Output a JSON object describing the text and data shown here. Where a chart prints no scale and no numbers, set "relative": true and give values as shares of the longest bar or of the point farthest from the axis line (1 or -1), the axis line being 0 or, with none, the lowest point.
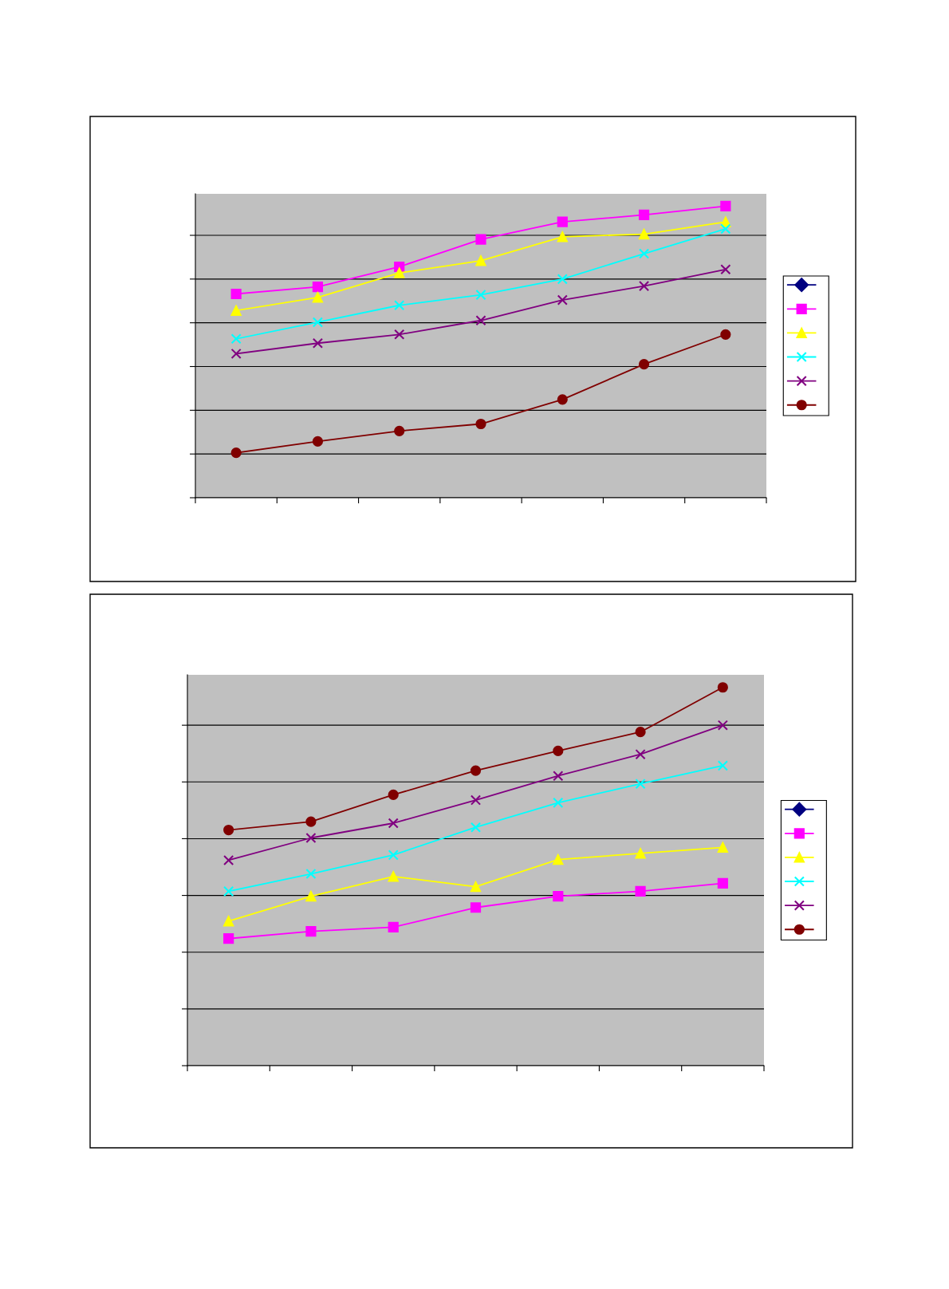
{
  "chart_data": [
    {
      "type": "line",
      "relative": true,
      "grid": "y",
      "categories": [
        null,
        null,
        null,
        null,
        null,
        null,
        null
      ],
      "series": [
        {
          "color": "#000080",
          "marker": "diamond",
          "values": [
            null,
            null,
            null,
            null,
            null,
            null,
            null
          ]
        },
        {
          "color": "#ff00ff",
          "marker": "square",
          "values": [
            0.699,
            0.723,
            0.792,
            0.886,
            0.946,
            0.97,
            1
          ]
        },
        {
          "color": "#ffff00",
          "marker": "triangle",
          "values": [
            0.642,
            0.687,
            0.771,
            0.813,
            0.895,
            0.904,
            0.946
          ]
        },
        {
          "color": "#00ffff",
          "marker": "cross",
          "values": [
            0.545,
            0.602,
            0.66,
            0.696,
            0.75,
            0.837,
            0.922
          ]
        },
        {
          "color": "#800080",
          "marker": "cross",
          "values": [
            0.494,
            0.53,
            0.56,
            0.608,
            0.678,
            0.726,
            0.783
          ]
        },
        {
          "color": "#800000",
          "marker": "circle",
          "values": [
            0.154,
            0.193,
            0.229,
            0.253,
            0.337,
            0.458,
            0.56
          ]
        }
      ]
    },
    {
      "type": "line",
      "relative": true,
      "grid": "y",
      "categories": [
        null,
        null,
        null,
        null,
        null,
        null,
        null
      ],
      "series": [
        {
          "color": "#000080",
          "marker": "diamond",
          "values": [
            null,
            null,
            null,
            null,
            null,
            null,
            null
          ]
        },
        {
          "color": "#ff00ff",
          "marker": "square",
          "values": [
            0.336,
            0.355,
            0.366,
            0.418,
            0.448,
            0.461,
            0.482
          ]
        },
        {
          "color": "#ffff00",
          "marker": "triangle",
          "values": [
            0.382,
            0.448,
            0.5,
            0.473,
            0.545,
            0.561,
            0.577
          ]
        },
        {
          "color": "#00ffff",
          "marker": "cross",
          "values": [
            0.461,
            0.507,
            0.557,
            0.63,
            0.695,
            0.745,
            0.793
          ]
        },
        {
          "color": "#800080",
          "marker": "cross",
          "values": [
            0.543,
            0.602,
            0.641,
            0.702,
            0.766,
            0.823,
            0.9
          ]
        },
        {
          "color": "#800000",
          "marker": "circle",
          "values": [
            0.623,
            0.645,
            0.716,
            0.78,
            0.832,
            0.882,
            1
          ]
        }
      ]
    }
  ]
}
